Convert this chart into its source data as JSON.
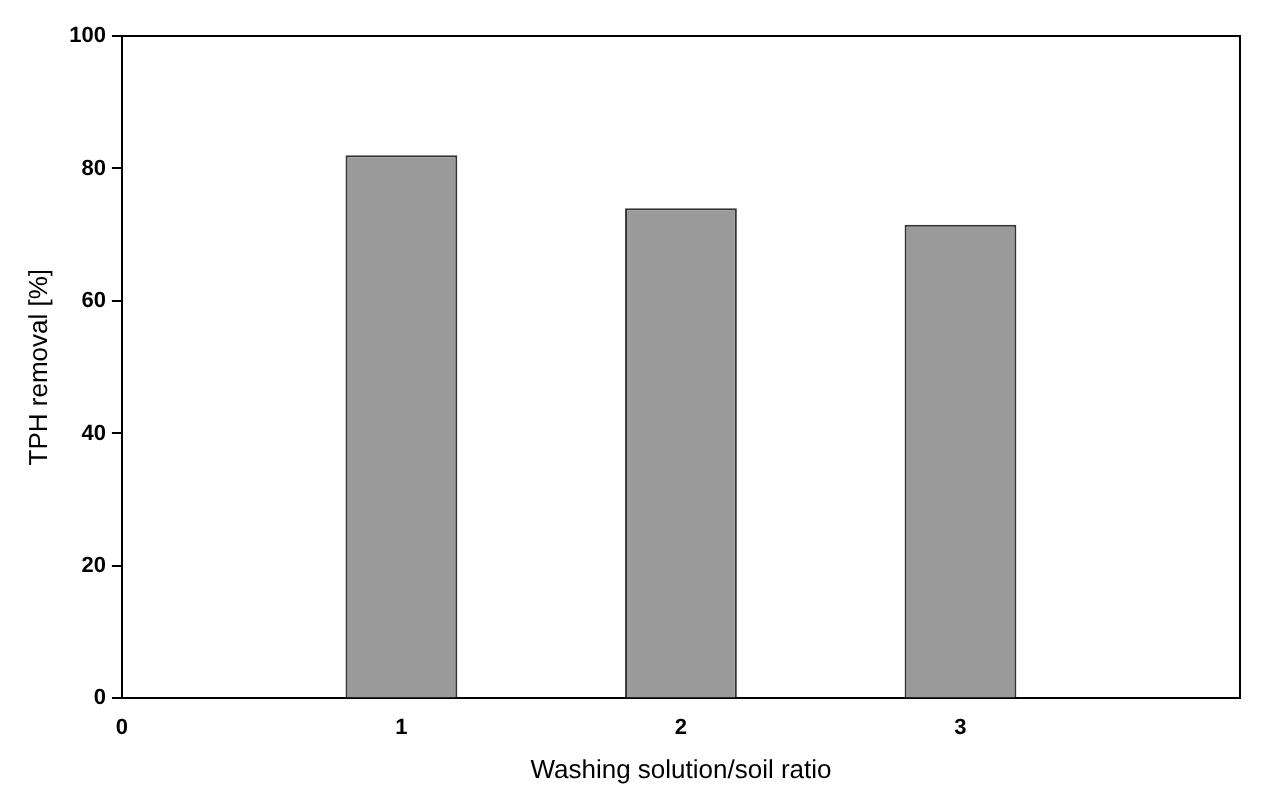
{
  "chart_data": {
    "type": "bar",
    "xlabel": "Washing solution/soil ratio",
    "ylabel": "TPH removal [%]",
    "x": [
      1,
      2,
      3
    ],
    "values": [
      82,
      74,
      71.5
    ],
    "color": "#9a9a9a",
    "xlim": [
      0,
      4
    ],
    "xticks": [
      0,
      1,
      2,
      3
    ],
    "ylim": [
      0,
      100
    ],
    "yticks": [
      0,
      20,
      40,
      60,
      80,
      100
    ],
    "grid": false,
    "legend": false
  }
}
